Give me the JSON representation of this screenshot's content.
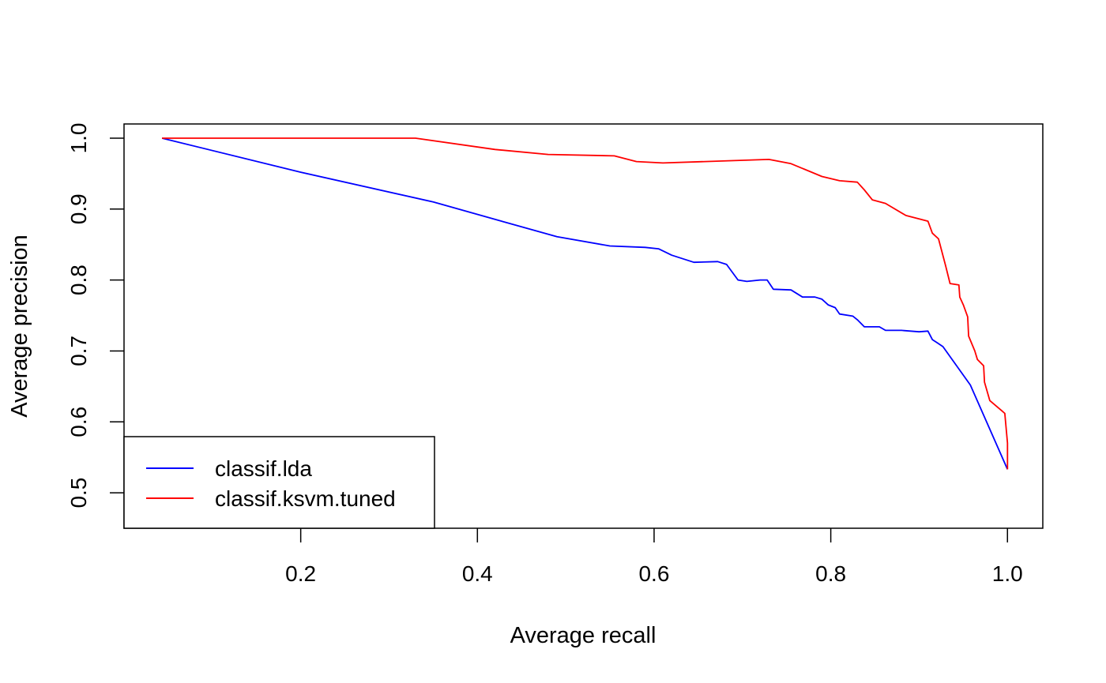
{
  "chart_data": {
    "type": "line",
    "title": "",
    "xlabel": "Average recall",
    "ylabel": "Average precision",
    "xlim": [
      0.0,
      1.04
    ],
    "ylim": [
      0.45,
      1.02
    ],
    "xticks": [
      {
        "value": 0.2,
        "label": "0.2"
      },
      {
        "value": 0.4,
        "label": "0.4"
      },
      {
        "value": 0.6,
        "label": "0.6"
      },
      {
        "value": 0.8,
        "label": "0.8"
      },
      {
        "value": 1.0,
        "label": "1.0"
      }
    ],
    "yticks": [
      {
        "value": 0.5,
        "label": "0.5"
      },
      {
        "value": 0.6,
        "label": "0.6"
      },
      {
        "value": 0.7,
        "label": "0.7"
      },
      {
        "value": 0.8,
        "label": "0.8"
      },
      {
        "value": 0.9,
        "label": "0.9"
      },
      {
        "value": 1.0,
        "label": "1.0"
      }
    ],
    "grid": false,
    "legend_position": "bottom-left",
    "series": [
      {
        "name": "classif.lda",
        "color": "#0000ff",
        "x": [
          0.043,
          0.2,
          0.35,
          0.49,
          0.55,
          0.59,
          0.605,
          0.62,
          0.645,
          0.672,
          0.682,
          0.695,
          0.705,
          0.72,
          0.728,
          0.735,
          0.755,
          0.768,
          0.782,
          0.79,
          0.797,
          0.805,
          0.81,
          0.825,
          0.83,
          0.838,
          0.855,
          0.862,
          0.88,
          0.9,
          0.91,
          0.915,
          0.92,
          0.927,
          0.958,
          1.0
        ],
        "y": [
          1.0,
          0.952,
          0.91,
          0.861,
          0.848,
          0.846,
          0.844,
          0.835,
          0.825,
          0.826,
          0.822,
          0.8,
          0.798,
          0.8,
          0.8,
          0.787,
          0.786,
          0.776,
          0.776,
          0.773,
          0.765,
          0.761,
          0.752,
          0.749,
          0.744,
          0.734,
          0.734,
          0.729,
          0.729,
          0.727,
          0.728,
          0.716,
          0.712,
          0.706,
          0.652,
          0.533
        ]
      },
      {
        "name": "classif.ksvm.tuned",
        "color": "#ff0000",
        "x": [
          0.043,
          0.33,
          0.42,
          0.48,
          0.555,
          0.58,
          0.61,
          0.73,
          0.755,
          0.79,
          0.81,
          0.83,
          0.838,
          0.847,
          0.862,
          0.885,
          0.91,
          0.915,
          0.922,
          0.93,
          0.935,
          0.945,
          0.946,
          0.95,
          0.955,
          0.956,
          0.963,
          0.966,
          0.973,
          0.974,
          0.98,
          0.997,
          1.0,
          1.0
        ],
        "y": [
          1.0,
          1.0,
          0.984,
          0.977,
          0.975,
          0.967,
          0.965,
          0.97,
          0.964,
          0.946,
          0.94,
          0.938,
          0.927,
          0.913,
          0.908,
          0.891,
          0.883,
          0.866,
          0.858,
          0.82,
          0.795,
          0.793,
          0.776,
          0.765,
          0.748,
          0.721,
          0.7,
          0.688,
          0.679,
          0.656,
          0.63,
          0.612,
          0.57,
          0.533
        ]
      }
    ]
  }
}
